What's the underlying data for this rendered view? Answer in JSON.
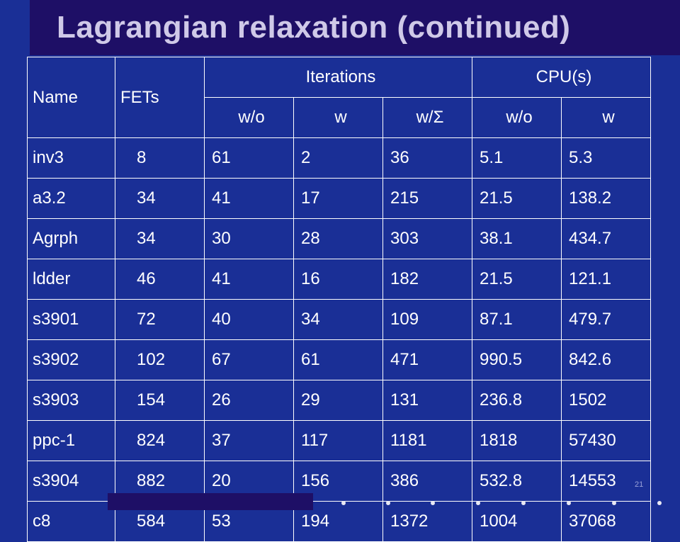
{
  "slide": {
    "title": "Lagrangian relaxation (continued)",
    "slide_number": "21"
  },
  "table": {
    "header": {
      "name": "Name",
      "fets": "FETs",
      "iterations": "Iterations",
      "cpu": "CPU(s)"
    },
    "subheader": {
      "iter_wo": "w/o",
      "iter_w": "w",
      "iter_wsigma": "w/Σ",
      "cpu_wo": "w/o",
      "cpu_w": "w"
    },
    "rows": [
      {
        "name": "inv3",
        "fets": "8",
        "it_wo": "61",
        "it_w": "2",
        "it_ws": "36",
        "cpu_wo": "5.1",
        "cpu_w": "5.3"
      },
      {
        "name": "a3.2",
        "fets": "34",
        "it_wo": "41",
        "it_w": "17",
        "it_ws": "215",
        "cpu_wo": "21.5",
        "cpu_w": "138.2"
      },
      {
        "name": "Agrph",
        "fets": "34",
        "it_wo": "30",
        "it_w": "28",
        "it_ws": "303",
        "cpu_wo": "38.1",
        "cpu_w": "434.7"
      },
      {
        "name": "ldder",
        "fets": "46",
        "it_wo": "41",
        "it_w": "16",
        "it_ws": "182",
        "cpu_wo": "21.5",
        "cpu_w": "121.1"
      },
      {
        "name": "s3901",
        "fets": "72",
        "it_wo": "40",
        "it_w": "34",
        "it_ws": "109",
        "cpu_wo": "87.1",
        "cpu_w": "479.7"
      },
      {
        "name": "s3902",
        "fets": "102",
        "it_wo": "67",
        "it_w": "61",
        "it_ws": "471",
        "cpu_wo": "990.5",
        "cpu_w": "842.6"
      },
      {
        "name": "s3903",
        "fets": "154",
        "it_wo": "26",
        "it_w": "29",
        "it_ws": "131",
        "cpu_wo": "236.8",
        "cpu_w": "1502"
      },
      {
        "name": "ppc-1",
        "fets": "824",
        "it_wo": "37",
        "it_w": "117",
        "it_ws": "1181",
        "cpu_wo": "1818",
        "cpu_w": "57430"
      },
      {
        "name": "s3904",
        "fets": "882",
        "it_wo": "20",
        "it_w": "156",
        "it_ws": "386",
        "cpu_wo": "532.8",
        "cpu_w": "14553"
      },
      {
        "name": "c8",
        "fets": "584",
        "it_wo": "53",
        "it_w": "194",
        "it_ws": "1372",
        "cpu_wo": "1004",
        "cpu_w": "37068"
      }
    ]
  },
  "colors": {
    "background": "#1a2f96",
    "title_band": "#1e0f66",
    "title_text": "#cfc9e8",
    "table_text": "#ffffff"
  }
}
